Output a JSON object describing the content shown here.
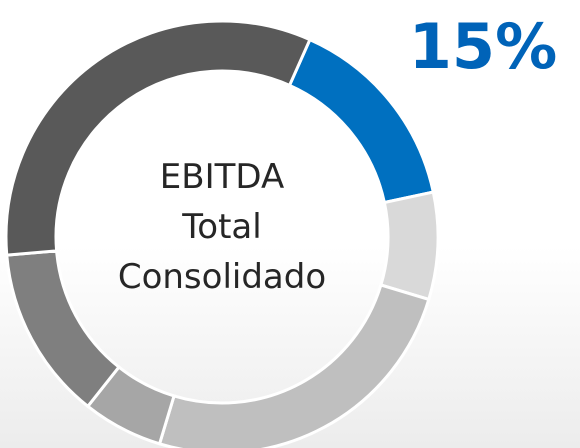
{
  "chart_data": {
    "type": "donut",
    "center_label": [
      "EBITDA",
      "Total",
      "Consolidado"
    ],
    "categories": [
      null,
      null,
      null,
      null,
      null,
      null
    ],
    "values": [
      15,
      8,
      25,
      6,
      13,
      33
    ],
    "value_labels": [
      "15%",
      null,
      null,
      null,
      null,
      null
    ],
    "colors": [
      "#0070c0",
      "#d9d9d9",
      "#bfbfbf",
      "#a6a6a6",
      "#7f7f7f",
      "#595959"
    ]
  }
}
